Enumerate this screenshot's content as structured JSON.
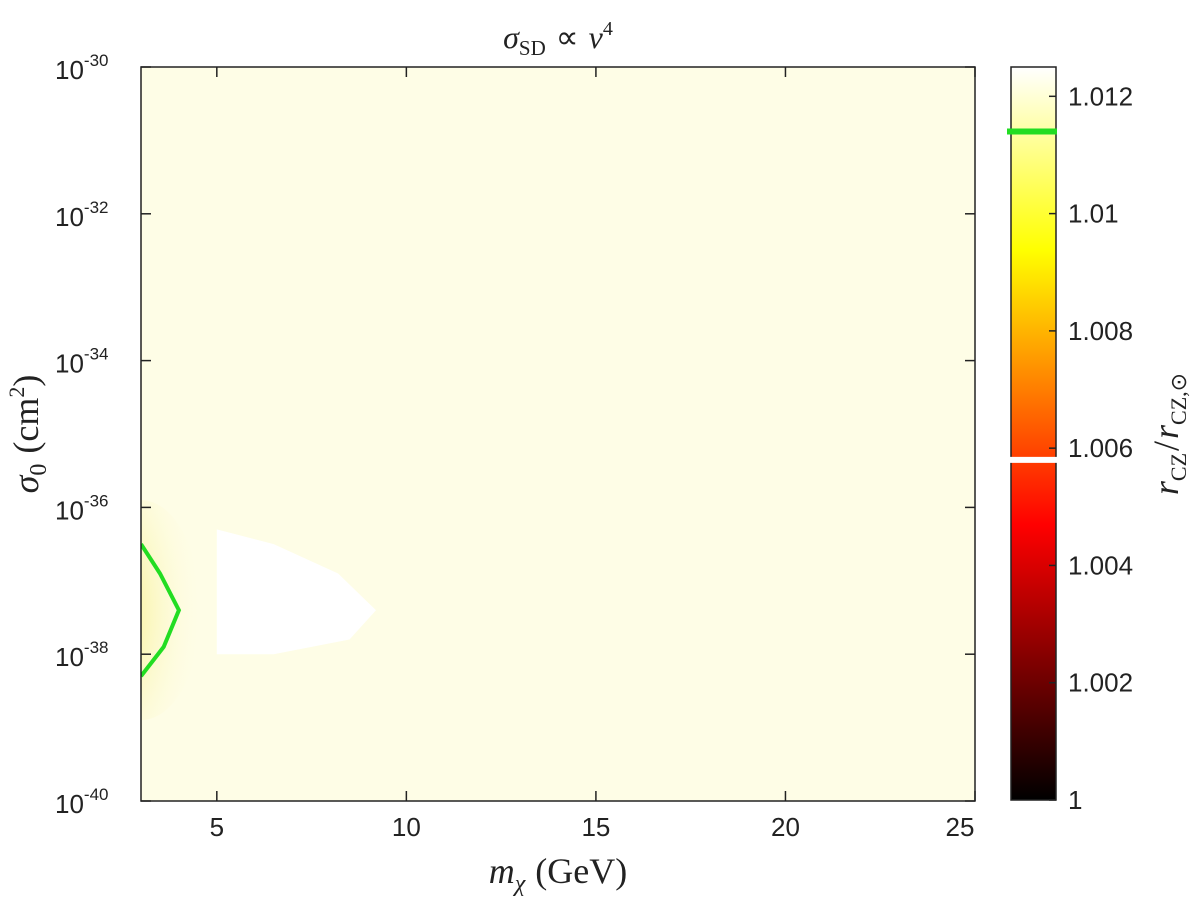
{
  "chart_data": {
    "type": "heatmap",
    "title": {
      "base": "σ",
      "sub": "SD",
      "rel": "∝",
      "var": "v",
      "exp": "4"
    },
    "xlabel": {
      "base": "m",
      "sub": "χ",
      "unit": "(GeV)"
    },
    "ylabel": {
      "base": "σ",
      "sub": "0",
      "unit_open": "(cm",
      "exp": "2",
      "unit_close": ")"
    },
    "colorbar_label": {
      "num": "r",
      "num_sub": "CZ",
      "sep": "/",
      "den": "r",
      "den_sub": "CZ,⊙"
    },
    "xlim": [
      3,
      25
    ],
    "y_log_exponent_range": [
      -40,
      -30
    ],
    "x_ticks": [
      {
        "value": 5,
        "label": "5"
      },
      {
        "value": 10,
        "label": "10"
      },
      {
        "value": 15,
        "label": "15"
      },
      {
        "value": 20,
        "label": "20"
      },
      {
        "value": 25,
        "label": "25"
      }
    ],
    "y_ticks": [
      {
        "exp": -30,
        "base": "10",
        "sup": "-30"
      },
      {
        "exp": -32,
        "base": "10",
        "sup": "-32"
      },
      {
        "exp": -34,
        "base": "10",
        "sup": "-34"
      },
      {
        "exp": -36,
        "base": "10",
        "sup": "-36"
      },
      {
        "exp": -38,
        "base": "10",
        "sup": "-38"
      },
      {
        "exp": -40,
        "base": "10",
        "sup": "-40"
      }
    ],
    "colorbar": {
      "range": [
        1.0,
        1.0125
      ],
      "ticks": [
        {
          "value": 1.0,
          "label": "1"
        },
        {
          "value": 1.002,
          "label": "1.002"
        },
        {
          "value": 1.004,
          "label": "1.004"
        },
        {
          "value": 1.006,
          "label": "1.006"
        },
        {
          "value": 1.008,
          "label": "1.008"
        },
        {
          "value": 1.01,
          "label": "1.01"
        },
        {
          "value": 1.012,
          "label": "1.012"
        }
      ],
      "colormap": "hot",
      "markers": [
        {
          "value": 1.0114,
          "color": "#22dd22"
        },
        {
          "value": 1.0058,
          "color": "#ffffff"
        }
      ]
    },
    "background_level": 1.0118,
    "regions": [
      {
        "description": "white",
        "color": "#ffffff",
        "points": [
          [
            5.0,
            -36.3
          ],
          [
            6.5,
            -36.5
          ],
          [
            8.2,
            -36.9
          ],
          [
            9.2,
            -37.4
          ],
          [
            8.5,
            -37.8
          ],
          [
            6.5,
            -38.0
          ],
          [
            5.0,
            -38.0
          ]
        ]
      },
      {
        "description": "contour",
        "color": "#22dd22",
        "points": [
          [
            3.0,
            -36.5
          ],
          [
            3.5,
            -36.9
          ],
          [
            4.0,
            -37.4
          ],
          [
            3.6,
            -37.9
          ],
          [
            3.0,
            -38.3
          ]
        ]
      }
    ],
    "colors": {
      "background": "#fefde6",
      "glow": "#faf59a",
      "axes": "#222222",
      "marker_green": "#22dd22"
    }
  }
}
